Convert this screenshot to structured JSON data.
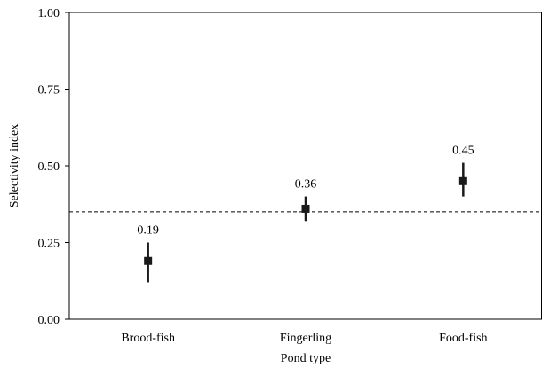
{
  "chart_data": {
    "type": "scatter",
    "title": "",
    "xlabel": "Pond type",
    "ylabel": "Selectivity index",
    "categories": [
      "Brood-fish",
      "Fingerling",
      "Food-fish"
    ],
    "series": [
      {
        "values": [
          0.19,
          0.36,
          0.45
        ],
        "error_low": [
          0.12,
          0.32,
          0.4
        ],
        "error_high": [
          0.25,
          0.4,
          0.51
        ]
      }
    ],
    "data_labels": [
      "0.19",
      "0.36",
      "0.45"
    ],
    "y_ticks": [
      "0.00",
      "0.25",
      "0.50",
      "0.75",
      "1.00"
    ],
    "ylim": [
      0,
      1
    ],
    "reference_line": 0.35,
    "grid": false,
    "legend": "none",
    "colors": {
      "marker": "#1a1a1a",
      "axis": "#000000",
      "reference_line": "#000000"
    }
  }
}
